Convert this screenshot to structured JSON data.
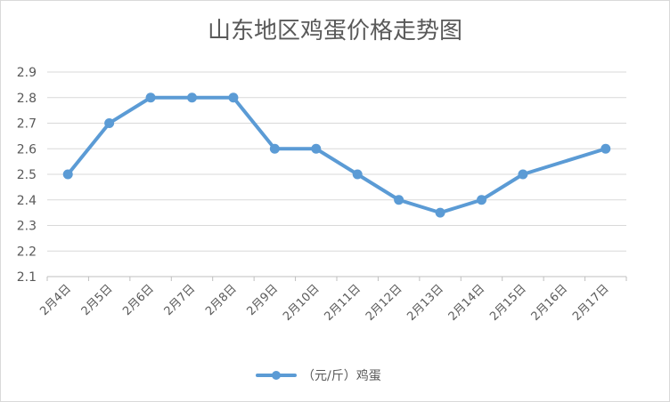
{
  "chart_data": {
    "type": "line",
    "title": "山东地区鸡蛋价格走势图",
    "categories": [
      "2月4日",
      "2月5日",
      "2月6日",
      "2月7日",
      "2月8日",
      "2月9日",
      "2月10日",
      "2月11日",
      "2月12日",
      "2月13日",
      "2月14日",
      "2月15日",
      "2月16日",
      "2月17日"
    ],
    "series": [
      {
        "name": "（元/斤）鸡蛋",
        "color": "#5b9bd5",
        "points": [
          {
            "x": "2月4日",
            "y": 2.5
          },
          {
            "x": "2月5日",
            "y": 2.7
          },
          {
            "x": "2月6日",
            "y": 2.8
          },
          {
            "x": "2月7日",
            "y": 2.8
          },
          {
            "x": "2月8日",
            "y": 2.8
          },
          {
            "x": "2月9日",
            "y": 2.6
          },
          {
            "x": "2月10日",
            "y": 2.6
          },
          {
            "x": "2月11日",
            "y": 2.5
          },
          {
            "x": "2月12日",
            "y": 2.4
          },
          {
            "x": "2月13日",
            "y": 2.35
          },
          {
            "x": "2月14日",
            "y": 2.4
          },
          {
            "x": "2月15日",
            "y": 2.5
          },
          {
            "x": "2月17日",
            "y": 2.6
          }
        ]
      }
    ],
    "yticks": [
      "2.1",
      "2.2",
      "2.3",
      "2.4",
      "2.5",
      "2.6",
      "2.7",
      "2.8",
      "2.9"
    ],
    "ylim": [
      2.1,
      2.9
    ],
    "grid": true,
    "legend_position": "bottom"
  }
}
